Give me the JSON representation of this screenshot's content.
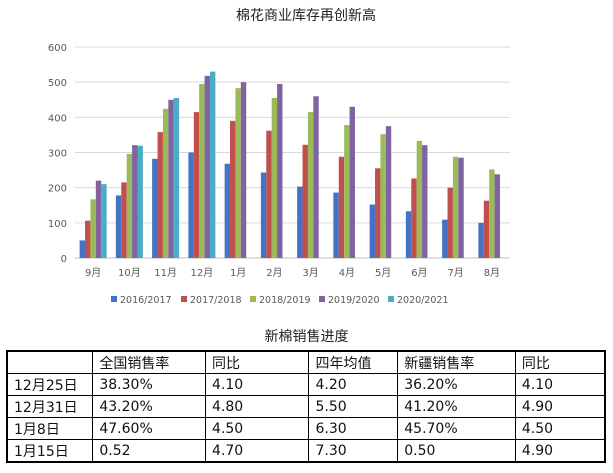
{
  "chart_data": {
    "type": "bar",
    "title": "棉花商业库存再创新高",
    "categories": [
      "9月",
      "10月",
      "11月",
      "12月",
      "1月",
      "2月",
      "3月",
      "4月",
      "5月",
      "6月",
      "7月",
      "8月"
    ],
    "ylim": [
      0,
      600
    ],
    "yticks": [
      0,
      100,
      200,
      300,
      400,
      500,
      600
    ],
    "grid": true,
    "legend_position": "bottom",
    "series": [
      {
        "name": "2016/2017",
        "color": "#4472C4",
        "values": [
          50,
          178,
          282,
          300,
          268,
          243,
          203,
          186,
          152,
          133,
          109,
          100
        ]
      },
      {
        "name": "2017/2018",
        "color": "#C0504D",
        "values": [
          106,
          215,
          358,
          415,
          390,
          362,
          322,
          288,
          255,
          226,
          200,
          163
        ]
      },
      {
        "name": "2018/2019",
        "color": "#9BBB59",
        "values": [
          167,
          296,
          424,
          495,
          483,
          455,
          415,
          378,
          352,
          333,
          288,
          252
        ]
      },
      {
        "name": "2019/2020",
        "color": "#8064A2",
        "values": [
          220,
          321,
          450,
          518,
          500,
          495,
          460,
          430,
          375,
          321,
          285,
          238
        ]
      },
      {
        "name": "2020/2021",
        "color": "#4BACC6",
        "values": [
          210,
          319,
          455,
          530,
          null,
          null,
          null,
          null,
          null,
          null,
          null,
          null
        ]
      }
    ]
  },
  "table": {
    "title": "新棉销售进度",
    "headers": [
      "",
      "全国销售率",
      "同比",
      "四年均值",
      "新疆销售率",
      "同比"
    ],
    "rows": [
      [
        "12月25日",
        "38.30%",
        "4.10",
        "4.20",
        "36.20%",
        "4.10"
      ],
      [
        "12月31日",
        "43.20%",
        "4.80",
        "5.50",
        "41.20%",
        "4.90"
      ],
      [
        "1月8日",
        "47.60%",
        "4.50",
        "6.30",
        "45.70%",
        "4.50"
      ],
      [
        "1月15日",
        "0.52",
        "4.70",
        "7.30",
        "0.50",
        "4.90"
      ]
    ]
  }
}
